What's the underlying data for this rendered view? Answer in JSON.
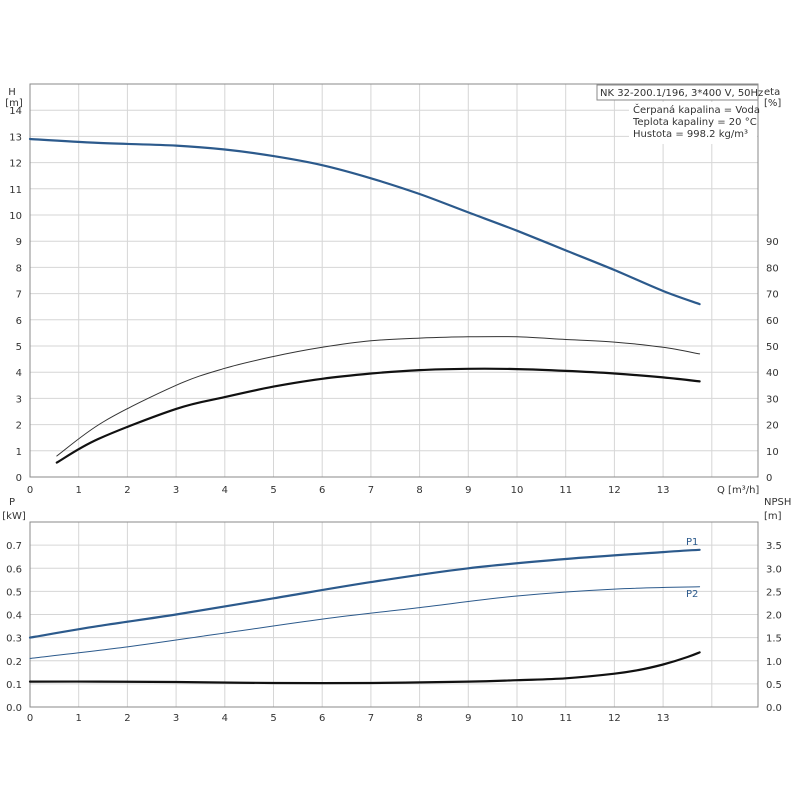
{
  "chart_data": [
    {
      "type": "line",
      "title": "NK 32-200.1/196, 3*400 V, 50Hz",
      "info_lines": [
        "Čerpaná kapalina = Voda",
        "Teplota kapaliny = 20 °C",
        "Hustota = 998.2 kg/m³"
      ],
      "xlabel": "Q [m³/h]",
      "xlim": [
        0,
        14.8
      ],
      "x_ticks": [
        "0",
        "1",
        "2",
        "3",
        "4",
        "5",
        "6",
        "7",
        "8",
        "9",
        "10",
        "11",
        "12",
        "13"
      ],
      "left_axis": {
        "label_top": "H",
        "label_unit": "[m]",
        "ylim": [
          0,
          15
        ],
        "ticks": [
          "0",
          "1",
          "2",
          "3",
          "4",
          "5",
          "6",
          "7",
          "8",
          "9",
          "10",
          "11",
          "12",
          "13",
          "14"
        ]
      },
      "right_axis": {
        "label_top": "eta",
        "label_unit": "[%]",
        "ylim": [
          0,
          150
        ],
        "ticks": [
          "0",
          "10",
          "20",
          "30",
          "40",
          "50",
          "60",
          "70",
          "80",
          "90"
        ]
      },
      "grid": true,
      "series": [
        {
          "id": "H",
          "axis": "left",
          "color": "#2c5a8c",
          "width": 2.2,
          "x": [
            0,
            1.4,
            3,
            4,
            5,
            6,
            7,
            8,
            9,
            10,
            11,
            12,
            13,
            13.75
          ],
          "y": [
            12.9,
            12.75,
            12.65,
            12.5,
            12.25,
            11.9,
            11.4,
            10.8,
            10.1,
            9.4,
            8.65,
            7.9,
            7.1,
            6.6
          ]
        },
        {
          "id": "eta_thin",
          "axis": "right",
          "color": "#333333",
          "width": 1,
          "x": [
            0.55,
            1.5,
            3,
            4,
            5,
            6,
            7,
            8,
            9,
            10,
            11,
            12,
            13,
            13.75
          ],
          "y": [
            8,
            21,
            35,
            41.5,
            46,
            49.5,
            52,
            53,
            53.5,
            53.5,
            52.5,
            51.5,
            49.5,
            47
          ]
        },
        {
          "id": "eta_thick",
          "axis": "right",
          "color": "#111111",
          "width": 2.2,
          "x": [
            0.55,
            1.4,
            3,
            4,
            5,
            6,
            7,
            8,
            9,
            10,
            11,
            12,
            13,
            13.75
          ],
          "y": [
            5.5,
            14.5,
            26,
            30.5,
            34.5,
            37.5,
            39.5,
            40.8,
            41.3,
            41.2,
            40.5,
            39.5,
            38,
            36.5
          ]
        }
      ]
    },
    {
      "type": "line",
      "xlim": [
        0,
        14.8
      ],
      "x_ticks": [
        "0",
        "1",
        "2",
        "3",
        "4",
        "5",
        "6",
        "7",
        "8",
        "9",
        "10",
        "11",
        "12",
        "13"
      ],
      "left_axis": {
        "label_top": "P",
        "label_unit": "[kW]",
        "ylim": [
          0,
          0.8
        ],
        "ticks": [
          "0.0",
          "0.1",
          "0.2",
          "0.3",
          "0.4",
          "0.5",
          "0.6",
          "0.7"
        ]
      },
      "right_axis": {
        "label_top": "NPSH",
        "label_unit": "[m]",
        "ylim": [
          0,
          4
        ],
        "ticks": [
          "0.0",
          "0.5",
          "1.0",
          "1.5",
          "2.0",
          "2.5",
          "3.0",
          "3.5"
        ]
      },
      "grid": true,
      "series": [
        {
          "id": "P1",
          "name": "P1",
          "axis": "left",
          "color": "#2c5a8c",
          "width": 2.2,
          "x": [
            0,
            1.4,
            3,
            5,
            7,
            9,
            11,
            13,
            13.75
          ],
          "y": [
            0.3,
            0.35,
            0.4,
            0.47,
            0.54,
            0.6,
            0.64,
            0.67,
            0.68
          ]
        },
        {
          "id": "P2",
          "name": "P2",
          "axis": "left",
          "color": "#2c5a8c",
          "width": 1,
          "x": [
            0,
            2,
            4,
            6,
            8,
            10,
            12,
            13.75
          ],
          "y": [
            0.21,
            0.26,
            0.32,
            0.38,
            0.43,
            0.48,
            0.51,
            0.52
          ]
        },
        {
          "id": "NPSH",
          "axis": "right",
          "color": "#111111",
          "width": 2.2,
          "x": [
            0,
            1.4,
            3,
            5,
            7,
            9,
            10,
            11,
            12,
            12.5,
            13,
            13.5,
            13.75
          ],
          "y": [
            0.55,
            0.55,
            0.54,
            0.52,
            0.52,
            0.55,
            0.58,
            0.62,
            0.72,
            0.8,
            0.92,
            1.08,
            1.18
          ]
        }
      ]
    }
  ]
}
